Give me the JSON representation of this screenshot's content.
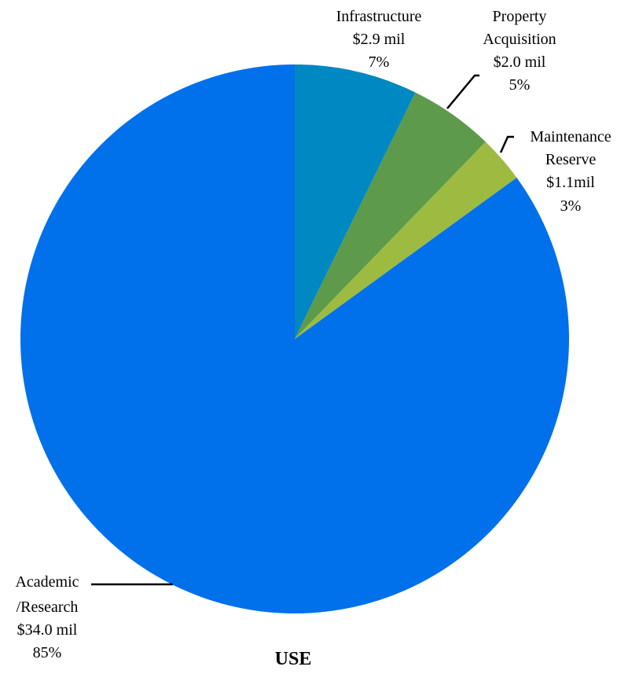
{
  "chart_data": {
    "type": "pie",
    "title": "USE",
    "colors": [
      "#0070EB",
      "#0088C2",
      "#5E9A4C",
      "#9DBB41"
    ],
    "slices": [
      {
        "label_lines": [
          "Academic",
          "/Research",
          "$34.0 mil",
          "85%"
        ],
        "value": 34.0,
        "percent": 85
      },
      {
        "label_lines": [
          "Infrastructure",
          "$2.9 mil",
          "7%"
        ],
        "value": 2.9,
        "percent": 7
      },
      {
        "label_lines": [
          "Property",
          "Acquisition",
          "$2.0 mil",
          "5%"
        ],
        "value": 2.0,
        "percent": 5
      },
      {
        "label_lines": [
          "Maintenance",
          "Reserve",
          "$1.1mil",
          "3%"
        ],
        "value": 1.1,
        "percent": 3
      }
    ]
  }
}
